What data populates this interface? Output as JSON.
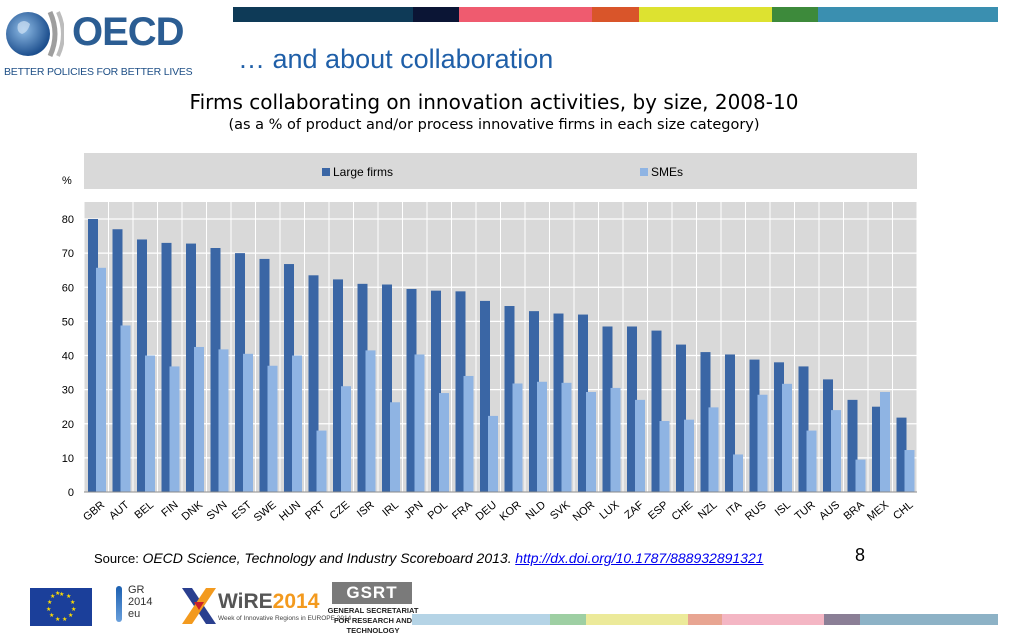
{
  "header": {
    "logo_text": "OECD",
    "logo_tagline": "BETTER POLICIES FOR BETTER LIVES",
    "slide_title": "… and about collaboration",
    "top_bar_colors": [
      "#0e3a57",
      "#0b1535",
      "#ef5b6f",
      "#d9552a",
      "#dde230",
      "#3d8a3b",
      "#3a8fb0"
    ]
  },
  "chart_data": {
    "type": "bar",
    "title": "Firms collaborating on innovation activities, by size, 2008-10",
    "subtitle": "(as a % of product and/or process innovative firms in each size category)",
    "ylabel": "%",
    "ylim": [
      0,
      80
    ],
    "yticks": [
      0,
      10,
      20,
      30,
      40,
      50,
      60,
      70,
      80
    ],
    "grid": true,
    "legend_position": "top",
    "categories": [
      "GBR",
      "AUT",
      "BEL",
      "FIN",
      "DNK",
      "SVN",
      "EST",
      "SWE",
      "HUN",
      "PRT",
      "CZE",
      "ISR",
      "IRL",
      "JPN",
      "POL",
      "FRA",
      "DEU",
      "KOR",
      "NLD",
      "SVK",
      "NOR",
      "LUX",
      "ZAF",
      "ESP",
      "CHE",
      "NZL",
      "ITA",
      "RUS",
      "ISL",
      "TUR",
      "AUS",
      "BRA",
      "MEX",
      "CHL"
    ],
    "series": [
      {
        "name": "Large firms",
        "color": "#3a66a5",
        "values": [
          80,
          77,
          74,
          73,
          72.8,
          71.5,
          70,
          68.3,
          66.8,
          63.5,
          62.3,
          61,
          60.8,
          59.5,
          59,
          58.8,
          56,
          54.5,
          53,
          52.3,
          52,
          48.5,
          48.5,
          47.3,
          43.2,
          41,
          40.3,
          38.8,
          38,
          36.8,
          33,
          27,
          25,
          21.8
        ]
      },
      {
        "name": "SMEs",
        "color": "#8fb4e3",
        "values": [
          65.7,
          48.8,
          40,
          36.8,
          42.5,
          41.8,
          40.5,
          37,
          40,
          18,
          31,
          41.5,
          26.3,
          40.3,
          29,
          34,
          22.3,
          31.8,
          32.3,
          32,
          29.3,
          30.5,
          27,
          20.8,
          21.2,
          24.8,
          11,
          28.5,
          31.7,
          18,
          24,
          9.5,
          29.3,
          12.3
        ]
      }
    ]
  },
  "source": {
    "label": "Source:",
    "text": "OECD Science, Technology and Industry Scoreboard 2013.",
    "link": "http://dx.doi.org/10.1787/888932891321"
  },
  "page_number": "8",
  "footer": {
    "gr_text": "GR\n2014\neu",
    "wire_name_prefix": "WiRE",
    "wire_name_year": "2014",
    "wire_subtitle": "Week of Innovative Regions in EUROPE 2014",
    "gsrt_box": "GSRT",
    "gsrt_text": "GENERAL SECRETARIAT FOR RESEARCH AND TECHNOLOGY",
    "bottom_bar_colors": [
      "#b5d4e6",
      "#9ecfa3",
      "#ecea9a",
      "#e8a592",
      "#f4b6c4",
      "#8b7f96",
      "#8db2c6"
    ]
  }
}
